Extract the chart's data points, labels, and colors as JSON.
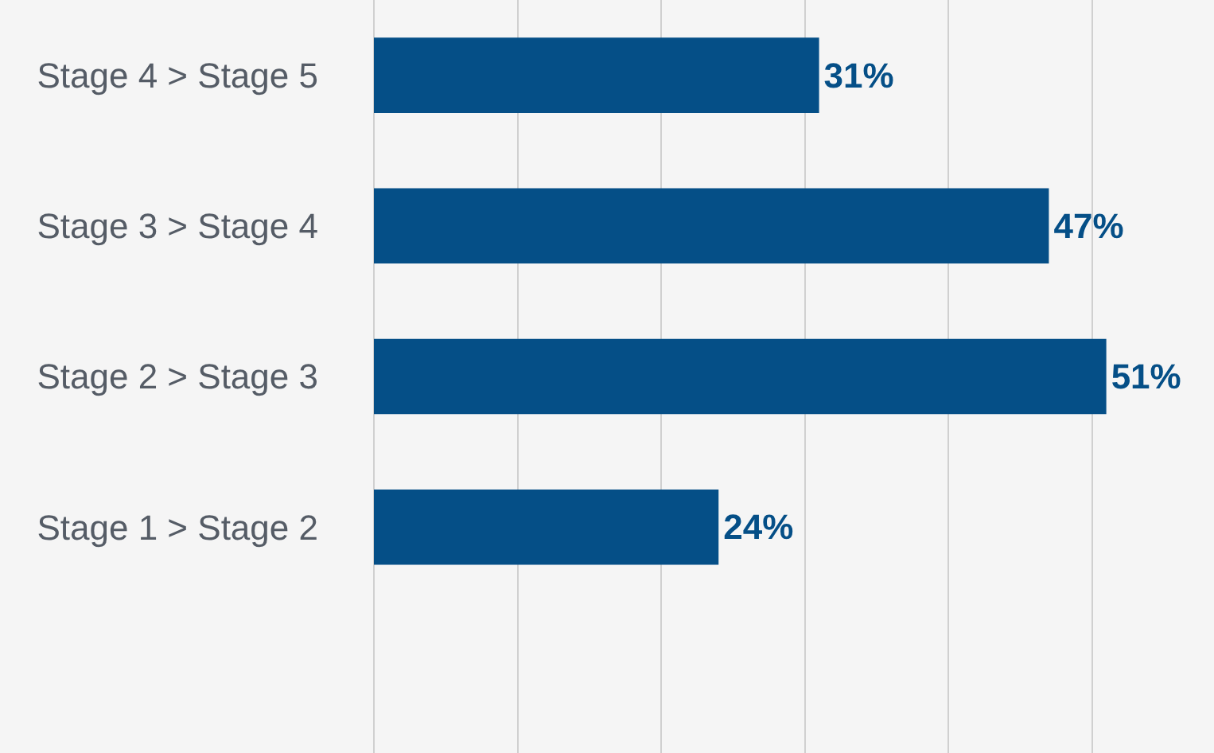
{
  "chart_data": {
    "type": "bar",
    "orientation": "horizontal",
    "categories": [
      "Stage 4 > Stage 5",
      "Stage 3 > Stage 4",
      "Stage 2 > Stage 3",
      "Stage 1 > Stage 2",
      null
    ],
    "values": [
      31,
      47,
      51,
      24,
      null
    ],
    "value_labels": [
      "31%",
      "47%",
      "51%",
      "24%",
      null
    ],
    "color": "#054f87",
    "xlim": [
      0,
      58.5
    ],
    "xticks": [
      {
        "value": 0,
        "label": null
      },
      {
        "value": 10,
        "label": null
      },
      {
        "value": 20,
        "label": null
      },
      {
        "value": 30,
        "label": null
      },
      {
        "value": 40,
        "label": null
      },
      {
        "value": 50,
        "label": null
      }
    ],
    "grid": "x",
    "tick_labels": "y",
    "legend": false
  }
}
